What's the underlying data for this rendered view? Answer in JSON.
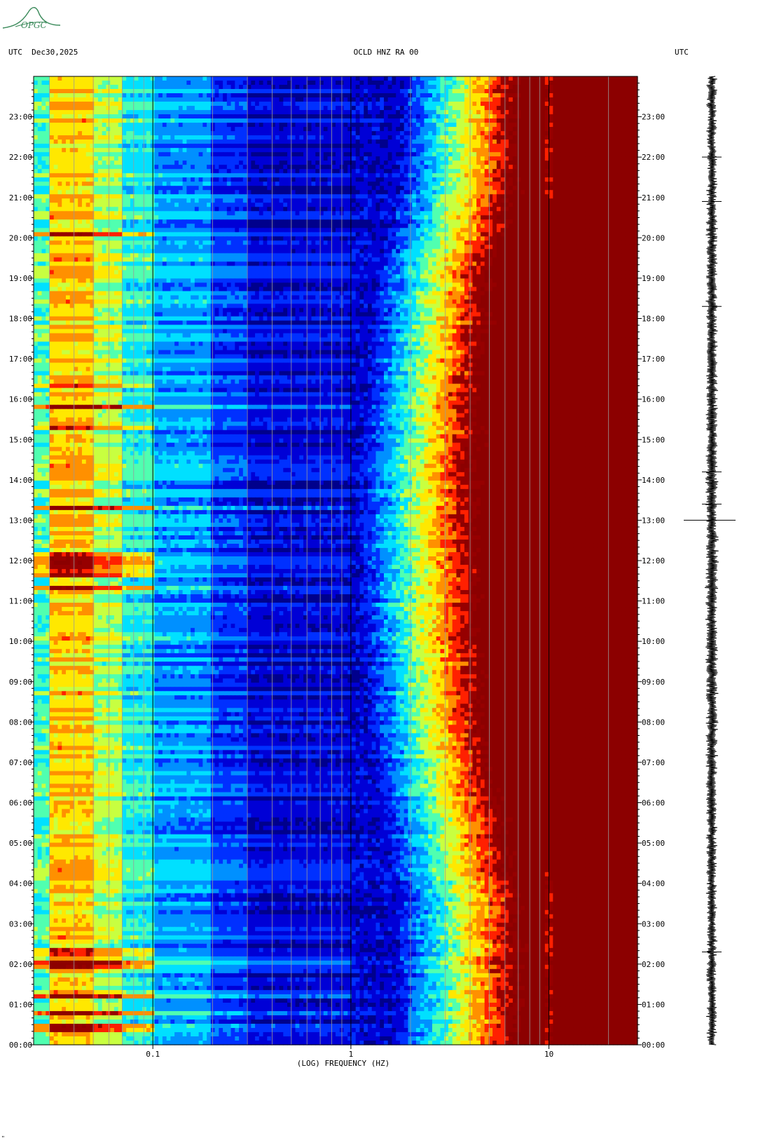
{
  "header": {
    "left_label": "UTC  Dec30,2025",
    "center_label": "OCLD HNZ RA 00",
    "right_label": "UTC"
  },
  "logo": {
    "text": "OPGC",
    "color": "#3a8a5a"
  },
  "corner_mark": "\"",
  "colors": {
    "colormap": [
      "#00008c",
      "#0000d6",
      "#0030ff",
      "#0090ff",
      "#00e0ff",
      "#50ffb0",
      "#c8ff40",
      "#ffe800",
      "#ff9000",
      "#ff2000",
      "#960000",
      "#8c0000"
    ]
  },
  "chart_data": {
    "type": "heatmap",
    "title": "OCLD HNZ RA 00",
    "date": "Dec30,2025",
    "xlabel": "(LOG) FREQUENCY (HZ)",
    "ylabel_left": "UTC",
    "ylabel_right": "UTC",
    "x_scale": "log",
    "x_range_hz": [
      0.025,
      28
    ],
    "x_ticks": [
      {
        "value": 0.1,
        "label": "0.1"
      },
      {
        "value": 1,
        "label": "1"
      },
      {
        "value": 10,
        "label": "10"
      }
    ],
    "y_range_hours": [
      0,
      24
    ],
    "y_ticks": [
      "00:00",
      "01:00",
      "02:00",
      "03:00",
      "04:00",
      "05:00",
      "06:00",
      "07:00",
      "08:00",
      "09:00",
      "10:00",
      "11:00",
      "12:00",
      "13:00",
      "14:00",
      "15:00",
      "16:00",
      "17:00",
      "18:00",
      "19:00",
      "20:00",
      "21:00",
      "22:00",
      "23:00"
    ],
    "gridlines_hz": [
      0.03,
      0.04,
      0.05,
      0.06,
      0.07,
      0.08,
      0.09,
      0.1,
      0.2,
      0.3,
      0.4,
      0.5,
      0.6,
      0.7,
      0.8,
      0.9,
      1,
      2,
      3,
      4,
      5,
      6,
      7,
      8,
      9,
      10,
      20
    ],
    "boundary_frequency_hz": [
      {
        "hour": 0,
        "cyan": 3.0,
        "red": 7.0
      },
      {
        "hour": 4,
        "cyan": 3.0,
        "red": 7.0
      },
      {
        "hour": 5,
        "cyan": 2.7,
        "red": 6.0
      },
      {
        "hour": 8,
        "cyan": 2.2,
        "red": 4.5
      },
      {
        "hour": 12,
        "cyan": 1.9,
        "red": 4.2
      },
      {
        "hour": 16,
        "cyan": 2.1,
        "red": 4.3
      },
      {
        "hour": 19,
        "cyan": 2.4,
        "red": 5.0
      },
      {
        "hour": 21,
        "cyan": 3.0,
        "red": 6.5
      },
      {
        "hour": 24,
        "cyan": 3.3,
        "red": 7.0
      }
    ],
    "low_frequency_bands": [
      {
        "from_hz": 0.025,
        "to_hz": 0.03,
        "level": 0.42
      },
      {
        "from_hz": 0.03,
        "to_hz": 0.05,
        "level": 0.62
      },
      {
        "from_hz": 0.05,
        "to_hz": 0.07,
        "level": 0.5
      },
      {
        "from_hz": 0.07,
        "to_hz": 0.1,
        "level": 0.38
      },
      {
        "from_hz": 0.1,
        "to_hz": 0.2,
        "level": 0.28
      },
      {
        "from_hz": 0.2,
        "to_hz": 0.3,
        "level": 0.18
      },
      {
        "from_hz": 0.3,
        "to_hz": 1.0,
        "level": 0.1
      }
    ],
    "microseism_events_hours": [
      0.4,
      0.8,
      1.2,
      2.0,
      2.3,
      11.3,
      11.7,
      11.9,
      12.1,
      13.3,
      15.3,
      15.8,
      16.3,
      20.1
    ],
    "waveform": {
      "label": "seismogram trace",
      "spike_hours": [
        13.0,
        2.3,
        13.4,
        20.9,
        22.0,
        14.2,
        18.3
      ]
    }
  }
}
